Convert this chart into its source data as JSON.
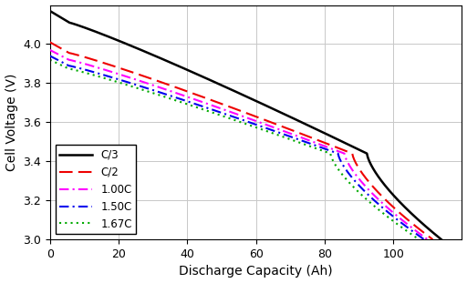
{
  "title": "",
  "xlabel": "Discharge Capacity (Ah)",
  "ylabel": "Cell Voltage (V)",
  "xlim": [
    0,
    120
  ],
  "ylim": [
    3.0,
    4.2
  ],
  "xticks": [
    0,
    20,
    40,
    60,
    80,
    100
  ],
  "yticks": [
    3.0,
    3.2,
    3.4,
    3.6,
    3.8,
    4.0
  ],
  "curves": [
    {
      "label": "C/3",
      "color": "#000000",
      "linestyle": "solid",
      "linewidth": 1.8,
      "x_end": 114.0,
      "start_v": 4.17,
      "mid_v": 3.6,
      "mid_t": 0.6,
      "end_v": 3.0
    },
    {
      "label": "C/2",
      "color": "#ee0000",
      "linestyle": "dashed",
      "linewidth": 1.5,
      "x_end": 111.5,
      "start_v": 4.01,
      "mid_v": 3.52,
      "mid_t": 0.6,
      "end_v": 3.0
    },
    {
      "label": "1.00C",
      "color": "#ff00ff",
      "linestyle": "dashdotdot",
      "linewidth": 1.5,
      "x_end": 110.0,
      "start_v": 3.97,
      "mid_v": 3.48,
      "mid_t": 0.6,
      "end_v": 3.0
    },
    {
      "label": "1.50C",
      "color": "#0000ee",
      "linestyle": "dashdot",
      "linewidth": 1.5,
      "x_end": 109.0,
      "start_v": 3.94,
      "mid_v": 3.44,
      "mid_t": 0.6,
      "end_v": 3.0
    },
    {
      "label": "1.67C",
      "color": "#00aa00",
      "linestyle": "dotted",
      "linewidth": 1.5,
      "x_end": 107.5,
      "start_v": 3.92,
      "mid_v": 3.4,
      "mid_t": 0.6,
      "end_v": 3.0
    }
  ],
  "background_color": "#ffffff",
  "grid_color": "#c8c8c8",
  "legend_loc": "lower left",
  "legend_fontsize": 8.5
}
